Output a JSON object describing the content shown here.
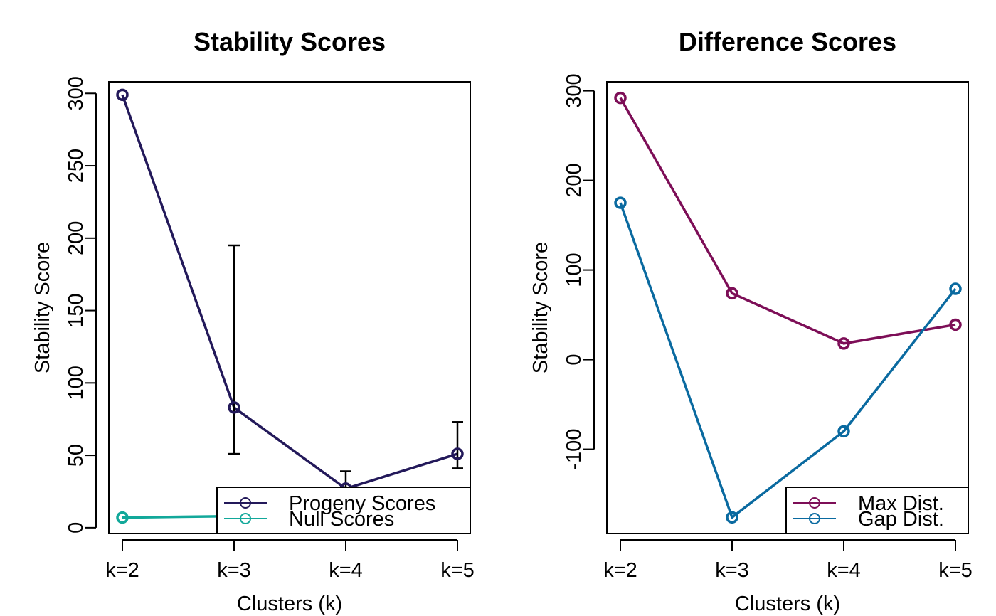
{
  "chart_data": [
    {
      "type": "line",
      "title": "Stability Scores",
      "xlabel": "Clusters (k)",
      "ylabel": "Stability Score",
      "categories": [
        "k=2",
        "k=3",
        "k=4",
        "k=5"
      ],
      "ylim": [
        -4,
        308
      ],
      "yticks": [
        "0",
        "50",
        "100",
        "150",
        "200",
        "250",
        "300"
      ],
      "yticks_values": [
        0,
        50,
        100,
        150,
        200,
        250,
        300
      ],
      "grid": false,
      "legend_position": "bottom-right",
      "series": [
        {
          "name": "Progeny Scores",
          "color": "#23195a",
          "values": [
            299,
            83,
            27,
            51
          ],
          "error_bars": [
            null,
            [
              51,
              195
            ],
            [
              22,
              39
            ],
            [
              41,
              73
            ]
          ]
        },
        {
          "name": "Null Scores",
          "color": "#12a89a",
          "values": [
            7,
            8,
            10,
            12
          ],
          "error_bars": [
            null,
            null,
            null,
            null
          ]
        }
      ]
    },
    {
      "type": "line",
      "title": "Difference Scores",
      "xlabel": "Clusters (k)",
      "ylabel": "Stability Score",
      "categories": [
        "k=2",
        "k=3",
        "k=4",
        "k=5"
      ],
      "ylim": [
        -194,
        310
      ],
      "yticks": [
        "-100",
        "0",
        "100",
        "200",
        "300"
      ],
      "yticks_values": [
        -100,
        0,
        100,
        200,
        300
      ],
      "grid": false,
      "legend_position": "bottom-right",
      "series": [
        {
          "name": "Max Dist.",
          "color": "#7d0e57",
          "values": [
            292,
            74,
            18,
            39
          ],
          "error_bars": [
            null,
            null,
            null,
            null
          ]
        },
        {
          "name": "Gap Dist.",
          "color": "#0a6aa0",
          "values": [
            175,
            -176,
            -80,
            79
          ],
          "error_bars": [
            null,
            null,
            null,
            null
          ]
        }
      ]
    }
  ]
}
